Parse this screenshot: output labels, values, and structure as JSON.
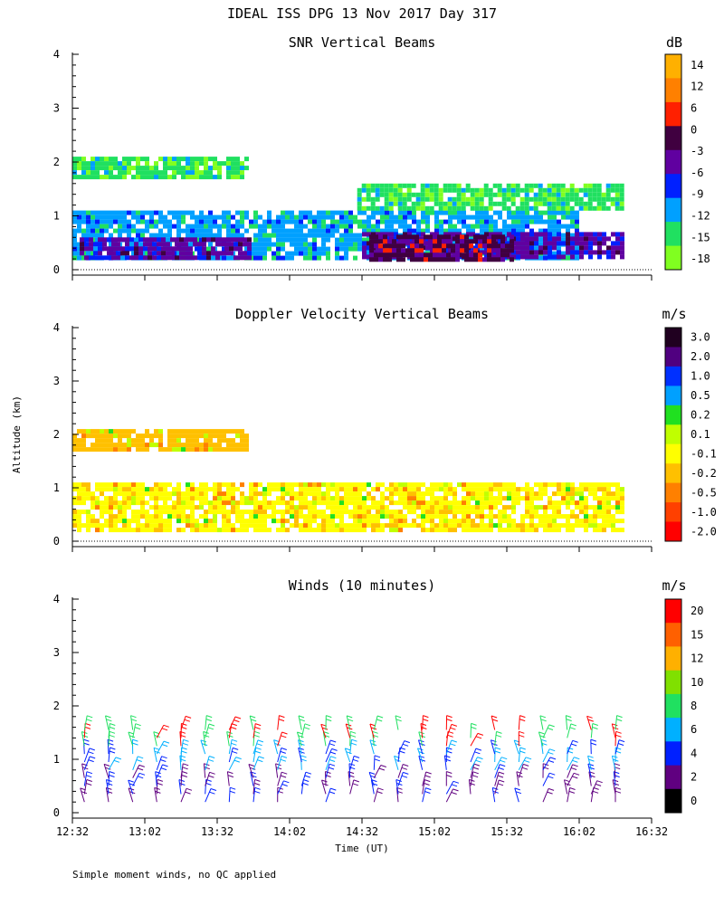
{
  "title": "IDEAL ISS DPG  13 Nov 2017 Day 317",
  "ylabel": "Altitude (km)",
  "xlabel": "Time (UT)",
  "footnote": "Simple moment winds, no QC applied",
  "chart_data": [
    {
      "type": "heatmap",
      "title": "SNR Vertical Beams",
      "colorbar_unit": "dB",
      "colorbar_labels": [
        "14",
        "12",
        "6",
        "0",
        "-3",
        "-6",
        "-9",
        "-12",
        "-15",
        "-18"
      ],
      "colorbar_colors": [
        "#ffb000",
        "#ff8000",
        "#ff2000",
        "#400040",
        "#6000a0",
        "#0020ff",
        "#00a0ff",
        "#20e060",
        "#80ff20"
      ],
      "x_ticks": [
        "12:32",
        "13:02",
        "13:32",
        "14:02",
        "14:32",
        "15:02",
        "15:32",
        "16:02",
        "16:32"
      ],
      "y_ticks": [
        0,
        1,
        2,
        3,
        4
      ],
      "ylim": [
        0,
        4
      ],
      "layers": [
        {
          "t0": "12:32",
          "t1": "16:02",
          "z0": 0.2,
          "z1": 1.1,
          "snr": -12
        },
        {
          "t0": "12:35",
          "t1": "13:45",
          "z0": 0.2,
          "z1": 0.6,
          "snr": -6
        },
        {
          "t0": "14:32",
          "t1": "16:20",
          "z0": 0.2,
          "z1": 0.7,
          "snr": -6
        },
        {
          "t0": "14:35",
          "t1": "15:35",
          "z0": 0.2,
          "z1": 0.65,
          "snr": -3
        },
        {
          "t0": "12:32",
          "t1": "13:44",
          "z0": 1.7,
          "z1": 2.1,
          "snr": -15
        },
        {
          "t0": "14:30",
          "t1": "16:20",
          "z0": 1.1,
          "z1": 1.6,
          "snr": -15
        }
      ]
    },
    {
      "type": "heatmap",
      "title": "Doppler Velocity Vertical Beams",
      "colorbar_unit": "m/s",
      "colorbar_labels": [
        "3.0",
        "2.0",
        "1.0",
        "0.5",
        "0.2",
        "0.1",
        "-0.1",
        "-0.2",
        "-0.5",
        "-1.0",
        "-2.0"
      ],
      "colorbar_colors": [
        "#200020",
        "#500080",
        "#0030ff",
        "#00a0ff",
        "#20e020",
        "#c0ff00",
        "#ffff00",
        "#ffc000",
        "#ff8000",
        "#ff4000",
        "#ff0000"
      ],
      "x_ticks": [
        "12:32",
        "13:02",
        "13:32",
        "14:02",
        "14:32",
        "15:02",
        "15:32",
        "16:02",
        "16:32"
      ],
      "y_ticks": [
        0,
        1,
        2,
        3,
        4
      ],
      "ylim": [
        0,
        4
      ],
      "layers": [
        {
          "t0": "12:32",
          "t1": "16:20",
          "z0": 0.2,
          "z1": 1.1,
          "w": -0.1
        },
        {
          "t0": "12:32",
          "t1": "13:44",
          "z0": 1.75,
          "z1": 2.1,
          "w": -0.2
        }
      ]
    },
    {
      "type": "scatter",
      "title": "Winds (10 minutes)",
      "colorbar_unit": "m/s",
      "colorbar_labels": [
        "20",
        "15",
        "12",
        "10",
        "8",
        "6",
        "4",
        "2",
        "0"
      ],
      "colorbar_colors": [
        "#ff0000",
        "#ff6000",
        "#ffb000",
        "#80e000",
        "#20e060",
        "#00b0ff",
        "#0020ff",
        "#600080",
        "#000000"
      ],
      "x_ticks": [
        "12:32",
        "13:02",
        "13:32",
        "14:02",
        "14:32",
        "15:02",
        "15:32",
        "16:02",
        "16:32"
      ],
      "y_ticks": [
        0,
        1,
        2,
        3,
        4
      ],
      "ylim": [
        0,
        4
      ],
      "profile_times": [
        "12:37",
        "12:47",
        "12:57",
        "13:07",
        "13:17",
        "13:27",
        "13:37",
        "13:47",
        "13:57",
        "14:07",
        "14:17",
        "14:27",
        "14:37",
        "14:47",
        "14:57",
        "15:07",
        "15:17",
        "15:27",
        "15:37",
        "15:47",
        "15:57",
        "16:07",
        "16:17"
      ],
      "profile_heights_km": [
        0.2,
        0.35,
        0.5,
        0.65,
        0.8,
        0.95,
        1.1,
        1.25,
        1.4,
        1.55
      ]
    }
  ]
}
